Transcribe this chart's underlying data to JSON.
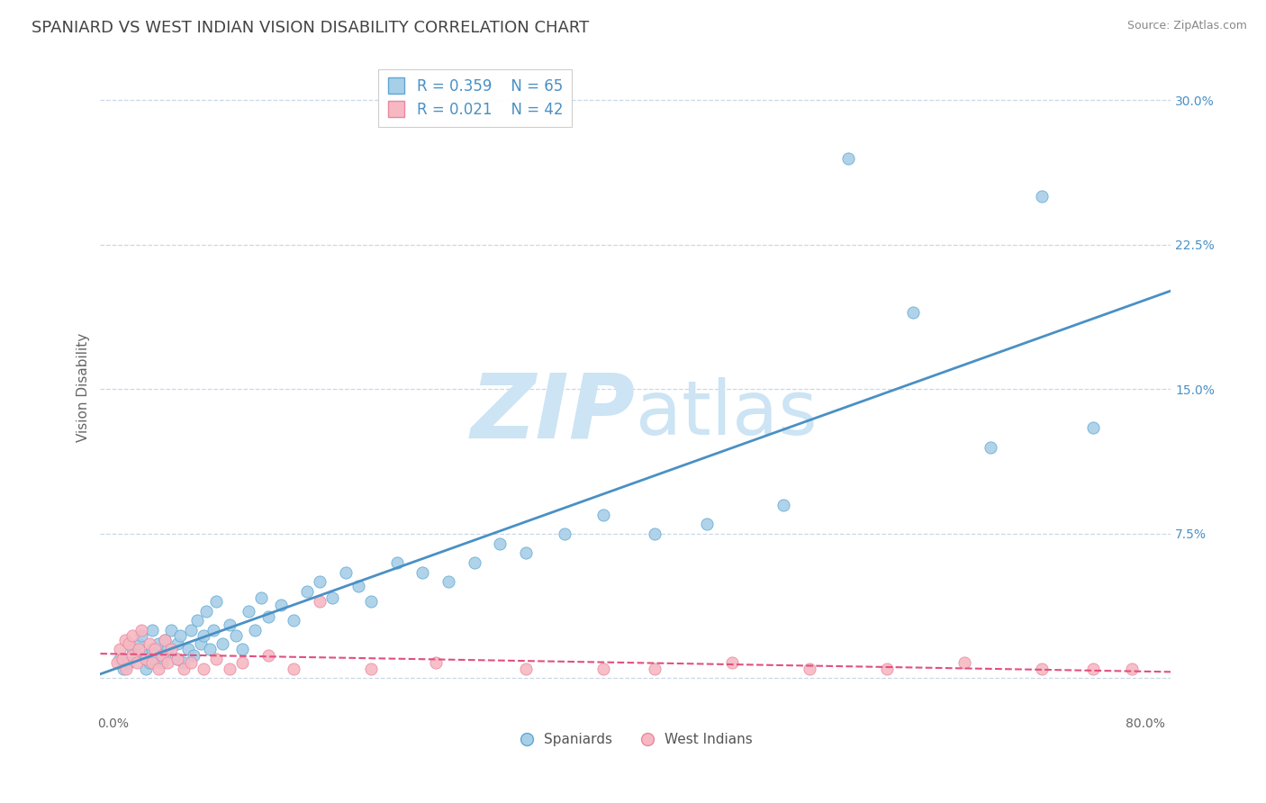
{
  "title": "SPANIARD VS WEST INDIAN VISION DISABILITY CORRELATION CHART",
  "source": "Source: ZipAtlas.com",
  "ylabel": "Vision Disability",
  "xlim": [
    -0.01,
    0.82
  ],
  "ylim": [
    -0.018,
    0.32
  ],
  "xticks": [
    0.0,
    0.2,
    0.4,
    0.6,
    0.8
  ],
  "xticklabels": [
    "0.0%",
    "",
    "",
    "",
    "80.0%"
  ],
  "yticks": [
    0.0,
    0.075,
    0.15,
    0.225,
    0.3
  ],
  "yticklabels": [
    "",
    "7.5%",
    "15.0%",
    "22.5%",
    "30.0%"
  ],
  "spaniard_color": "#a8cfe8",
  "spaniard_edge_color": "#5fa8d3",
  "west_indian_color": "#f7b8c2",
  "west_indian_edge_color": "#e888a0",
  "spaniard_line_color": "#4a90c4",
  "west_indian_line_color": "#e05080",
  "grid_color": "#c8d8e8",
  "background_color": "#ffffff",
  "legend_r1": "R = 0.359",
  "legend_n1": "N = 65",
  "legend_r2": "R = 0.021",
  "legend_n2": "N = 42",
  "spaniard_x": [
    0.005,
    0.008,
    0.012,
    0.015,
    0.018,
    0.02,
    0.022,
    0.025,
    0.025,
    0.028,
    0.03,
    0.03,
    0.032,
    0.035,
    0.038,
    0.04,
    0.04,
    0.042,
    0.045,
    0.05,
    0.05,
    0.052,
    0.055,
    0.058,
    0.06,
    0.062,
    0.065,
    0.068,
    0.07,
    0.072,
    0.075,
    0.078,
    0.08,
    0.085,
    0.09,
    0.095,
    0.1,
    0.105,
    0.11,
    0.115,
    0.12,
    0.13,
    0.14,
    0.15,
    0.16,
    0.17,
    0.18,
    0.19,
    0.2,
    0.22,
    0.24,
    0.26,
    0.28,
    0.3,
    0.32,
    0.35,
    0.38,
    0.42,
    0.46,
    0.52,
    0.57,
    0.62,
    0.68,
    0.72,
    0.76
  ],
  "spaniard_y": [
    0.01,
    0.005,
    0.008,
    0.015,
    0.012,
    0.018,
    0.022,
    0.005,
    0.012,
    0.008,
    0.015,
    0.025,
    0.01,
    0.018,
    0.008,
    0.012,
    0.02,
    0.015,
    0.025,
    0.01,
    0.018,
    0.022,
    0.008,
    0.015,
    0.025,
    0.012,
    0.03,
    0.018,
    0.022,
    0.035,
    0.015,
    0.025,
    0.04,
    0.018,
    0.028,
    0.022,
    0.015,
    0.035,
    0.025,
    0.042,
    0.032,
    0.038,
    0.03,
    0.045,
    0.05,
    0.042,
    0.055,
    0.048,
    0.04,
    0.06,
    0.055,
    0.05,
    0.06,
    0.07,
    0.065,
    0.075,
    0.085,
    0.075,
    0.08,
    0.09,
    0.27,
    0.19,
    0.12,
    0.25,
    0.13
  ],
  "west_indian_x": [
    0.003,
    0.005,
    0.007,
    0.009,
    0.01,
    0.012,
    0.015,
    0.015,
    0.018,
    0.02,
    0.022,
    0.025,
    0.028,
    0.03,
    0.032,
    0.035,
    0.038,
    0.04,
    0.042,
    0.045,
    0.05,
    0.055,
    0.06,
    0.07,
    0.08,
    0.09,
    0.1,
    0.12,
    0.14,
    0.16,
    0.2,
    0.25,
    0.32,
    0.38,
    0.42,
    0.48,
    0.54,
    0.6,
    0.66,
    0.72,
    0.76,
    0.79
  ],
  "west_indian_y": [
    0.008,
    0.015,
    0.01,
    0.02,
    0.005,
    0.018,
    0.012,
    0.022,
    0.008,
    0.015,
    0.025,
    0.01,
    0.018,
    0.008,
    0.015,
    0.005,
    0.012,
    0.02,
    0.008,
    0.015,
    0.01,
    0.005,
    0.008,
    0.005,
    0.01,
    0.005,
    0.008,
    0.012,
    0.005,
    0.04,
    0.005,
    0.008,
    0.005,
    0.005,
    0.005,
    0.008,
    0.005,
    0.005,
    0.008,
    0.005,
    0.005,
    0.005
  ]
}
